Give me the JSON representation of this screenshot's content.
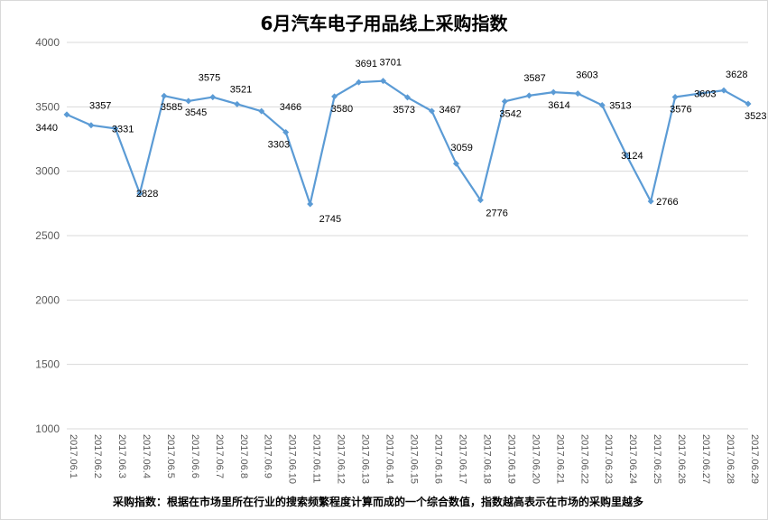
{
  "chart_data": {
    "type": "line",
    "title": "6月汽车电子用品线上采购指数",
    "categories": [
      "2017.06.1",
      "2017.06.2",
      "2017.06.3",
      "2017.06.4",
      "2017.06.5",
      "2017.06.6",
      "2017.06.7",
      "2017.06.8",
      "2017.06.9",
      "2017.06.10",
      "2017.06.11",
      "2017.06.12",
      "2017.06.13",
      "2017.06.14",
      "2017.06.15",
      "2017.06.16",
      "2017.06.17",
      "2017.06.18",
      "2017.06.19",
      "2017.06.20",
      "2017.06.21",
      "2017.06.22",
      "2017.06.23",
      "2017.06.24",
      "2017.06.25",
      "2017.06.26",
      "2017.06.27",
      "2017.06.28",
      "2017.06.29"
    ],
    "values": [
      3440,
      3357,
      3331,
      2828,
      3585,
      3545,
      3575,
      3521,
      3466,
      3303,
      2745,
      3580,
      3691,
      3701,
      3573,
      3467,
      3059,
      2776,
      3542,
      3587,
      3614,
      3603,
      3513,
      3124,
      2766,
      3576,
      3603,
      3628,
      3523
    ],
    "y_ticks": [
      "1000",
      "1500",
      "2000",
      "2500",
      "3000",
      "3500",
      "4000"
    ],
    "ylim": [
      1000,
      4000
    ],
    "grid": true,
    "line_color": "#5b9bd5",
    "grid_color": "#d9d9d9"
  },
  "footnote": "采购指数：根据在市场里所在行业的搜索频繁程度计算而成的一个综合数值，指数越高表示在市场的采购里越多"
}
